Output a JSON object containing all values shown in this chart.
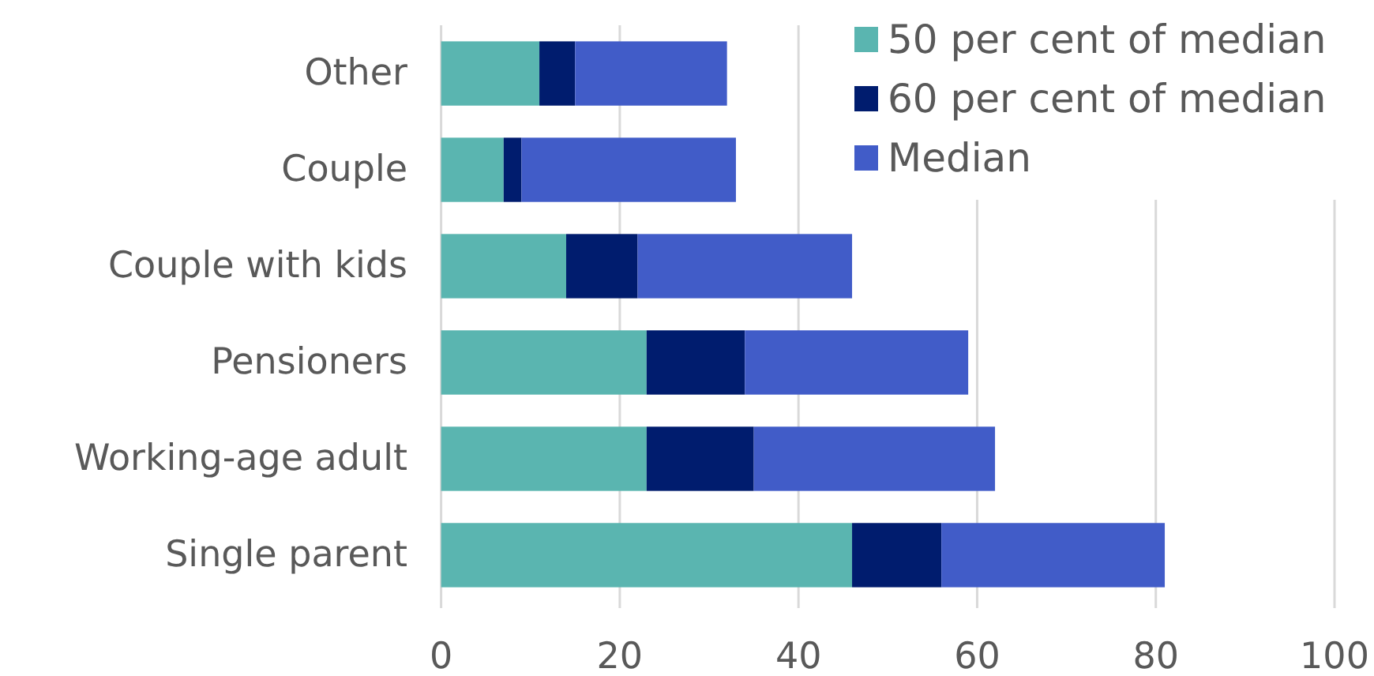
{
  "chart_data": {
    "type": "bar",
    "orientation": "horizontal",
    "stacked": true,
    "categories": [
      "Other",
      "Couple",
      "Couple with kids",
      "Pensioners",
      "Working-age adult",
      "Single parent"
    ],
    "series": [
      {
        "name": "50 per cent of median",
        "color": "#5ab5b0",
        "values": [
          11,
          7,
          14,
          23,
          23,
          46
        ]
      },
      {
        "name": "60 per cent of median",
        "color": "#001c6e",
        "values": [
          4,
          2,
          8,
          11,
          12,
          10
        ]
      },
      {
        "name": "Median",
        "color": "#415cc8",
        "values": [
          17,
          24,
          24,
          25,
          27,
          25
        ]
      }
    ],
    "xlim": [
      0,
      100
    ],
    "xticks": [
      0,
      20,
      40,
      60,
      80,
      100
    ],
    "grid": "x",
    "legend": "top right"
  }
}
